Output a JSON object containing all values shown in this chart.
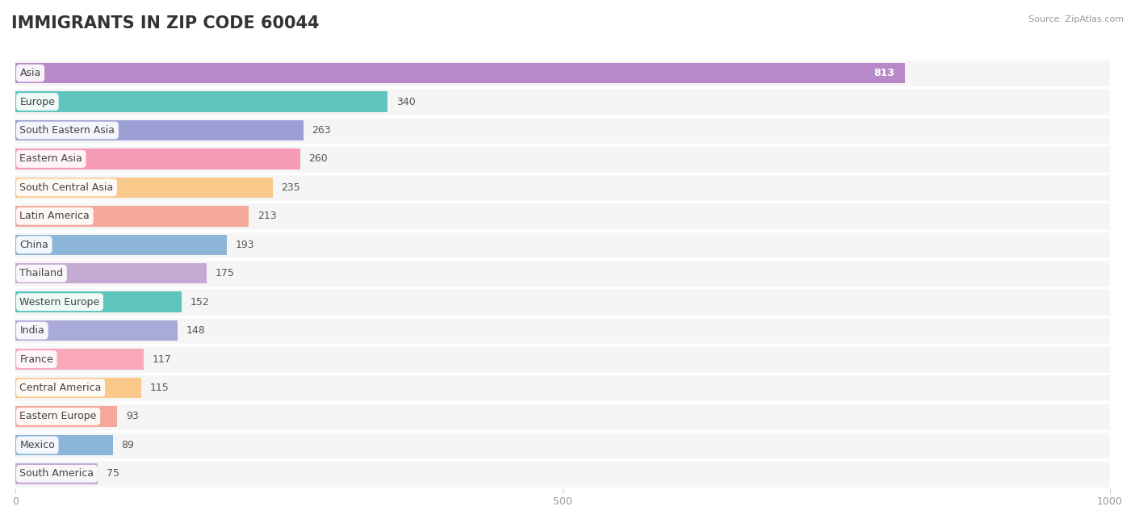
{
  "title": "IMMIGRANTS IN ZIP CODE 60044",
  "source_text": "Source: ZipAtlas.com",
  "categories": [
    "Asia",
    "Europe",
    "South Eastern Asia",
    "Eastern Asia",
    "South Central Asia",
    "Latin America",
    "China",
    "Thailand",
    "Western Europe",
    "India",
    "France",
    "Central America",
    "Eastern Europe",
    "Mexico",
    "South America"
  ],
  "values": [
    813,
    340,
    263,
    260,
    235,
    213,
    193,
    175,
    152,
    148,
    117,
    115,
    93,
    89,
    75
  ],
  "bar_colors": [
    "#b889c8",
    "#5ec5bc",
    "#9b9fd4",
    "#f69bb5",
    "#f9c98c",
    "#f5a99a",
    "#8cb5d8",
    "#c5aad4",
    "#5ec5bc",
    "#aaaad8",
    "#f9a8bc",
    "#f9c88a",
    "#f5a89a",
    "#8ab4d8",
    "#c4aad4"
  ],
  "xlim": [
    0,
    1000
  ],
  "xtick_values": [
    0,
    500,
    1000
  ],
  "background_color": "#ffffff",
  "bar_row_bg": "#f0f0f0",
  "title_fontsize": 15,
  "label_fontsize": 9,
  "value_fontsize": 9
}
